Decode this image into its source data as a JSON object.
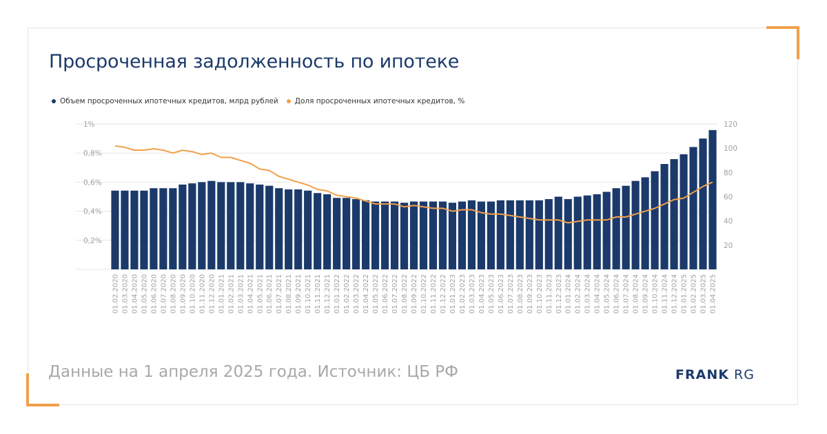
{
  "header": {
    "title": "Просроченная задолженность по ипотеке"
  },
  "footer": {
    "source": "Данные на 1 апреля 2025 года. Источник: ЦБ РФ"
  },
  "logo": {
    "bold": "FRANK",
    "light": "RG"
  },
  "colors": {
    "bar": "#1b3a6b",
    "line": "#f2a04a",
    "grid": "#e6e6e6",
    "axis_text": "#a0a0a0",
    "title": "#1b3a6b",
    "accent": "#f2a04a"
  },
  "chart_data": {
    "type": "bar",
    "title": "Просроченная задолженность по ипотеке",
    "legend_position": "top-left",
    "grid": true,
    "categories": [
      "01.02.2020",
      "01.03.2020",
      "01.04.2020",
      "01.05.2020",
      "01.06.2020",
      "01.07.2020",
      "01.08.2020",
      "01.09.2020",
      "01.10.2020",
      "01.11.2020",
      "01.12.2020",
      "01.01.2021",
      "01.02.2021",
      "01.03.2021",
      "01.04.2021",
      "01.05.2021",
      "01.06.2021",
      "01.07.2021",
      "01.08.2021",
      "01.09.2021",
      "01.10.2021",
      "01.11.2021",
      "01.12.2021",
      "01.01.2022",
      "01.02.2022",
      "01.03.2022",
      "01.04.2022",
      "01.05.2022",
      "01.06.2022",
      "01.07.2022",
      "01.08.2022",
      "01.09.2022",
      "01.10.2022",
      "01.11.2022",
      "01.12.2022",
      "01.01.2023",
      "01.02.2023",
      "01.03.2023",
      "01.04.2023",
      "01.05.2023",
      "01.06.2023",
      "01.07.2023",
      "01.08.2023",
      "01.09.2023",
      "01.10.2023",
      "01.11.2023",
      "01.12.2023",
      "01.01.2024",
      "01.02.2024",
      "01.03.2024",
      "01.04.2024",
      "01.05.2024",
      "01.06.2024",
      "01.07.2024",
      "01.08.2024",
      "01.09.2024",
      "01.10.2024",
      "01.11.2024",
      "01.12.2024",
      "01.01.2025",
      "01.02.2025",
      "01.03.2025",
      "01.04.2025"
    ],
    "series": [
      {
        "name": "Объем просроченных ипотечных кредитов, млрд рублей",
        "type": "bar",
        "axis": "right",
        "values": [
          65,
          65,
          65,
          65,
          67,
          67,
          67,
          70,
          71,
          72,
          73,
          72,
          72,
          72,
          71,
          70,
          69,
          67,
          66,
          66,
          65,
          63,
          62,
          59,
          59,
          58,
          57,
          56,
          56,
          56,
          55,
          56,
          56,
          56,
          56,
          55,
          56,
          57,
          56,
          56,
          57,
          57,
          57,
          57,
          57,
          58,
          60,
          58,
          60,
          61,
          62,
          64,
          67,
          69,
          73,
          76,
          81,
          87,
          91,
          95,
          101,
          108,
          115
        ]
      },
      {
        "name": "Доля просроченных ипотечных кредитов, %",
        "type": "line",
        "axis": "left",
        "values": [
          0.85,
          0.84,
          0.82,
          0.82,
          0.83,
          0.82,
          0.8,
          0.82,
          0.81,
          0.79,
          0.8,
          0.77,
          0.77,
          0.75,
          0.73,
          0.69,
          0.68,
          0.64,
          0.62,
          0.6,
          0.58,
          0.55,
          0.54,
          0.51,
          0.5,
          0.49,
          0.47,
          0.45,
          0.45,
          0.45,
          0.43,
          0.44,
          0.43,
          0.42,
          0.42,
          0.4,
          0.41,
          0.41,
          0.39,
          0.38,
          0.38,
          0.37,
          0.36,
          0.35,
          0.34,
          0.34,
          0.34,
          0.32,
          0.33,
          0.34,
          0.34,
          0.34,
          0.36,
          0.36,
          0.38,
          0.4,
          0.42,
          0.45,
          0.48,
          0.49,
          0.53,
          0.57,
          0.6
        ]
      }
    ],
    "y_left": {
      "ticks": [
        "0,2%",
        "0,4%",
        "0,6%",
        "0,8%",
        "1%"
      ],
      "range": [
        0,
        1
      ]
    },
    "y_right": {
      "ticks": [
        "20",
        "40",
        "60",
        "80",
        "100",
        "120"
      ],
      "range": [
        0,
        120
      ]
    }
  }
}
